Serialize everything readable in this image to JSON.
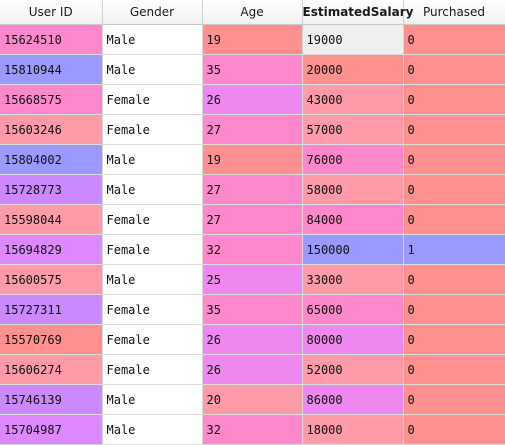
{
  "colors": {
    "pink": "#ff88cc",
    "blue": "#9999ff",
    "salmon": "#ff9090",
    "rose": "#ff9aa8",
    "violet": "#cc88ff",
    "magenta": "#ee88ee",
    "lilac": "#dd88ff",
    "white": "#ffffff",
    "selected": "#efefef"
  },
  "table": {
    "headers": [
      {
        "label": "User ID",
        "bold": false
      },
      {
        "label": "Gender",
        "bold": false
      },
      {
        "label": "Age",
        "bold": false
      },
      {
        "label": "EstimatedSalary",
        "bold": true
      },
      {
        "label": "Purchased",
        "bold": false
      }
    ],
    "rows": [
      {
        "cells": [
          "15624510",
          "Male",
          "19",
          "19000",
          "0"
        ],
        "colors": [
          "pink",
          "white",
          "salmon",
          "selected",
          "salmon"
        ]
      },
      {
        "cells": [
          "15810944",
          "Male",
          "35",
          "20000",
          "0"
        ],
        "colors": [
          "blue",
          "white",
          "pink",
          "salmon",
          "salmon"
        ]
      },
      {
        "cells": [
          "15668575",
          "Female",
          "26",
          "43000",
          "0"
        ],
        "colors": [
          "pink",
          "white",
          "magenta",
          "rose",
          "salmon"
        ]
      },
      {
        "cells": [
          "15603246",
          "Female",
          "27",
          "57000",
          "0"
        ],
        "colors": [
          "rose",
          "white",
          "pink",
          "rose",
          "salmon"
        ]
      },
      {
        "cells": [
          "15804002",
          "Male",
          "19",
          "76000",
          "0"
        ],
        "colors": [
          "blue",
          "white",
          "salmon",
          "pink",
          "salmon"
        ]
      },
      {
        "cells": [
          "15728773",
          "Male",
          "27",
          "58000",
          "0"
        ],
        "colors": [
          "violet",
          "white",
          "pink",
          "rose",
          "salmon"
        ]
      },
      {
        "cells": [
          "15598044",
          "Female",
          "27",
          "84000",
          "0"
        ],
        "colors": [
          "rose",
          "white",
          "pink",
          "pink",
          "salmon"
        ]
      },
      {
        "cells": [
          "15694829",
          "Female",
          "32",
          "150000",
          "1"
        ],
        "colors": [
          "lilac",
          "white",
          "pink",
          "blue",
          "blue"
        ]
      },
      {
        "cells": [
          "15600575",
          "Male",
          "25",
          "33000",
          "0"
        ],
        "colors": [
          "rose",
          "white",
          "magenta",
          "rose",
          "salmon"
        ]
      },
      {
        "cells": [
          "15727311",
          "Female",
          "35",
          "65000",
          "0"
        ],
        "colors": [
          "violet",
          "white",
          "pink",
          "pink",
          "salmon"
        ]
      },
      {
        "cells": [
          "15570769",
          "Female",
          "26",
          "80000",
          "0"
        ],
        "colors": [
          "salmon",
          "white",
          "magenta",
          "magenta",
          "salmon"
        ]
      },
      {
        "cells": [
          "15606274",
          "Female",
          "26",
          "52000",
          "0"
        ],
        "colors": [
          "rose",
          "white",
          "magenta",
          "rose",
          "salmon"
        ]
      },
      {
        "cells": [
          "15746139",
          "Male",
          "20",
          "86000",
          "0"
        ],
        "colors": [
          "violet",
          "white",
          "rose",
          "magenta",
          "salmon"
        ]
      },
      {
        "cells": [
          "15704987",
          "Male",
          "32",
          "18000",
          "0"
        ],
        "colors": [
          "lilac",
          "white",
          "pink",
          "rose",
          "salmon"
        ]
      }
    ]
  }
}
